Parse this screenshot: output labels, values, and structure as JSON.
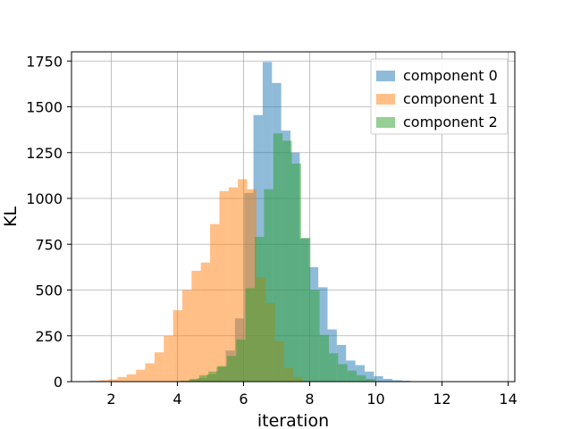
{
  "chart_data": {
    "type": "bar",
    "histogram": true,
    "xlabel": "iteration",
    "ylabel": "KL",
    "xlim": [
      0.8,
      14.2
    ],
    "ylim": [
      0,
      1800
    ],
    "xticks": [
      2,
      4,
      6,
      8,
      10,
      12,
      14
    ],
    "yticks": [
      0,
      250,
      500,
      750,
      1000,
      1250,
      1500,
      1750
    ],
    "grid": true,
    "legend_position": "top-right",
    "series": [
      {
        "name": "component 0",
        "color": "#1f77b4",
        "alpha": 0.5,
        "bin_edges": [
          3.5,
          3.78,
          4.06,
          4.34,
          4.62,
          4.9,
          5.18,
          5.46,
          5.74,
          6.02,
          6.3,
          6.58,
          6.86,
          7.14,
          7.42,
          7.7,
          7.98,
          8.26,
          8.54,
          8.82,
          9.1,
          9.38,
          9.66,
          9.94,
          10.22,
          10.5,
          10.78,
          11.06,
          11.34
        ],
        "counts": [
          0,
          2,
          5,
          10,
          20,
          40,
          80,
          170,
          345,
          1030,
          1455,
          1745,
          1630,
          1370,
          1250,
          780,
          625,
          515,
          285,
          200,
          115,
          90,
          55,
          30,
          15,
          8,
          5,
          2
        ]
      },
      {
        "name": "component 1",
        "color": "#ff7f0e",
        "alpha": 0.5,
        "bin_edges": [
          1.35,
          1.63,
          1.91,
          2.19,
          2.47,
          2.75,
          3.03,
          3.31,
          3.59,
          3.87,
          4.15,
          4.43,
          4.71,
          4.99,
          5.27,
          5.55,
          5.83,
          6.11,
          6.39,
          6.67,
          6.95,
          7.23,
          7.51,
          7.79,
          8.07
        ],
        "counts": [
          5,
          8,
          12,
          25,
          40,
          65,
          100,
          160,
          250,
          390,
          500,
          605,
          650,
          860,
          1040,
          1060,
          1105,
          1050,
          570,
          430,
          220,
          75,
          25,
          5
        ]
      },
      {
        "name": "component 2",
        "color": "#2ca02c",
        "alpha": 0.5,
        "bin_edges": [
          4.1,
          4.38,
          4.66,
          4.94,
          5.22,
          5.5,
          5.78,
          6.06,
          6.34,
          6.62,
          6.9,
          7.18,
          7.46,
          7.74,
          8.02,
          8.3,
          8.58,
          8.86,
          9.14,
          9.42,
          9.7,
          9.98
        ],
        "counts": [
          5,
          15,
          35,
          55,
          85,
          140,
          230,
          510,
          790,
          1050,
          1355,
          1315,
          1190,
          785,
          500,
          255,
          155,
          95,
          60,
          35,
          15
        ]
      }
    ]
  }
}
